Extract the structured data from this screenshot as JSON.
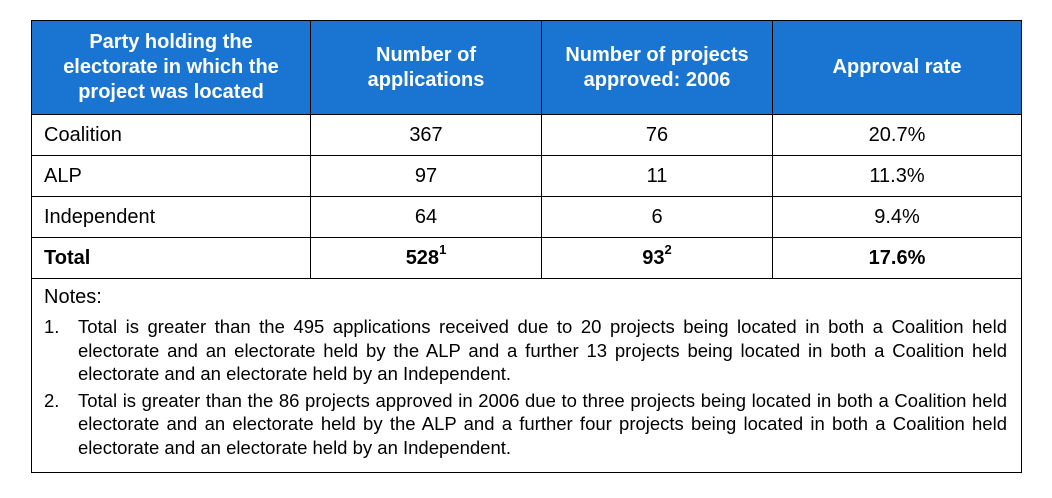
{
  "table": {
    "headers": [
      "Party holding the electorate in which the project was located",
      "Number of applications",
      "Number of projects approved: 2006",
      "Approval rate"
    ],
    "header_color": "#1a75d2",
    "rows": [
      {
        "party": "Coalition",
        "applications": "367",
        "approved": "76",
        "rate": "20.7%"
      },
      {
        "party": "ALP",
        "applications": "97",
        "approved": "11",
        "rate": "11.3%"
      },
      {
        "party": "Independent",
        "applications": "64",
        "approved": "6",
        "rate": "9.4%"
      }
    ],
    "total": {
      "label": "Total",
      "applications": "528",
      "applications_note": "1",
      "approved": "93",
      "approved_note": "2",
      "rate": "17.6%"
    }
  },
  "notes": {
    "title": "Notes:",
    "items": [
      {
        "num": "1.",
        "text": "Total is greater than the 495 applications received due to 20 projects being located in both a Coalition held electorate and an electorate held by the ALP and a further 13 projects being located in both a Coalition held electorate and an electorate held by an Independent."
      },
      {
        "num": "2.",
        "text": "Total is greater than the 86 projects approved in 2006 due to three projects being located in both a Coalition held electorate and an electorate held by the ALP and a further four projects being located in both a Coalition held electorate and an electorate held by an Independent."
      }
    ]
  }
}
